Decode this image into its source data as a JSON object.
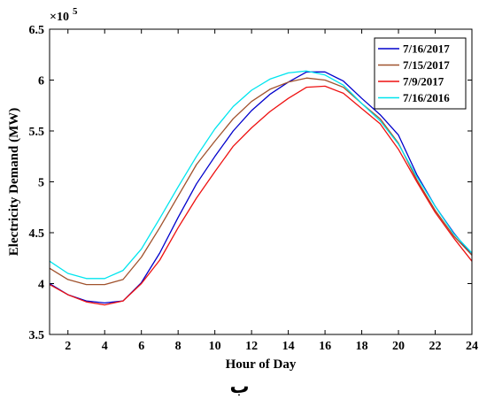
{
  "chart_data": {
    "type": "line",
    "xlabel": "Hour of Day",
    "ylabel": "Electricity Demand (MW)",
    "exponent_label": "×10",
    "exponent_power": "5",
    "xlim": [
      1,
      24
    ],
    "ylim": [
      3.5,
      6.5
    ],
    "x_ticks": [
      2,
      4,
      6,
      8,
      10,
      12,
      14,
      16,
      18,
      20,
      22,
      24
    ],
    "y_ticks": [
      3.5,
      4,
      4.5,
      5,
      5.5,
      6,
      6.5
    ],
    "y_tick_labels": [
      "3.5",
      "4",
      "4.5",
      "5",
      "5.5",
      "6",
      "6.5"
    ],
    "grid": false,
    "legend_position": "top-right",
    "x": [
      1,
      2,
      3,
      4,
      5,
      6,
      7,
      8,
      9,
      10,
      11,
      12,
      13,
      14,
      15,
      16,
      17,
      18,
      19,
      20,
      21,
      22,
      23,
      24
    ],
    "series": [
      {
        "name": "7/16/2017",
        "color": "#0000cc",
        "values": [
          4.0,
          3.89,
          3.83,
          3.81,
          3.83,
          4.01,
          4.3,
          4.65,
          4.98,
          5.25,
          5.5,
          5.7,
          5.86,
          5.98,
          6.08,
          6.08,
          5.99,
          5.82,
          5.66,
          5.46,
          5.07,
          4.76,
          4.5,
          4.28
        ]
      },
      {
        "name": "7/15/2017",
        "color": "#a0522d",
        "values": [
          4.15,
          4.04,
          3.99,
          3.99,
          4.04,
          4.26,
          4.55,
          4.86,
          5.17,
          5.4,
          5.62,
          5.79,
          5.91,
          5.98,
          6.02,
          6.0,
          5.93,
          5.77,
          5.62,
          5.38,
          5.02,
          4.72,
          4.47,
          4.28
        ]
      },
      {
        "name": "7/9/2017",
        "color": "#ee1111",
        "values": [
          3.99,
          3.89,
          3.82,
          3.79,
          3.83,
          4.0,
          4.23,
          4.55,
          4.84,
          5.1,
          5.35,
          5.53,
          5.69,
          5.82,
          5.93,
          5.94,
          5.87,
          5.72,
          5.57,
          5.32,
          5.0,
          4.7,
          4.45,
          4.22
        ]
      },
      {
        "name": "7/16/2016",
        "color": "#00e5ee",
        "values": [
          4.22,
          4.1,
          4.05,
          4.05,
          4.13,
          4.34,
          4.64,
          4.95,
          5.25,
          5.52,
          5.74,
          5.9,
          6.01,
          6.07,
          6.09,
          6.05,
          5.95,
          5.77,
          5.6,
          5.37,
          5.05,
          4.76,
          4.49,
          4.3
        ]
      }
    ]
  },
  "caption": "ب"
}
